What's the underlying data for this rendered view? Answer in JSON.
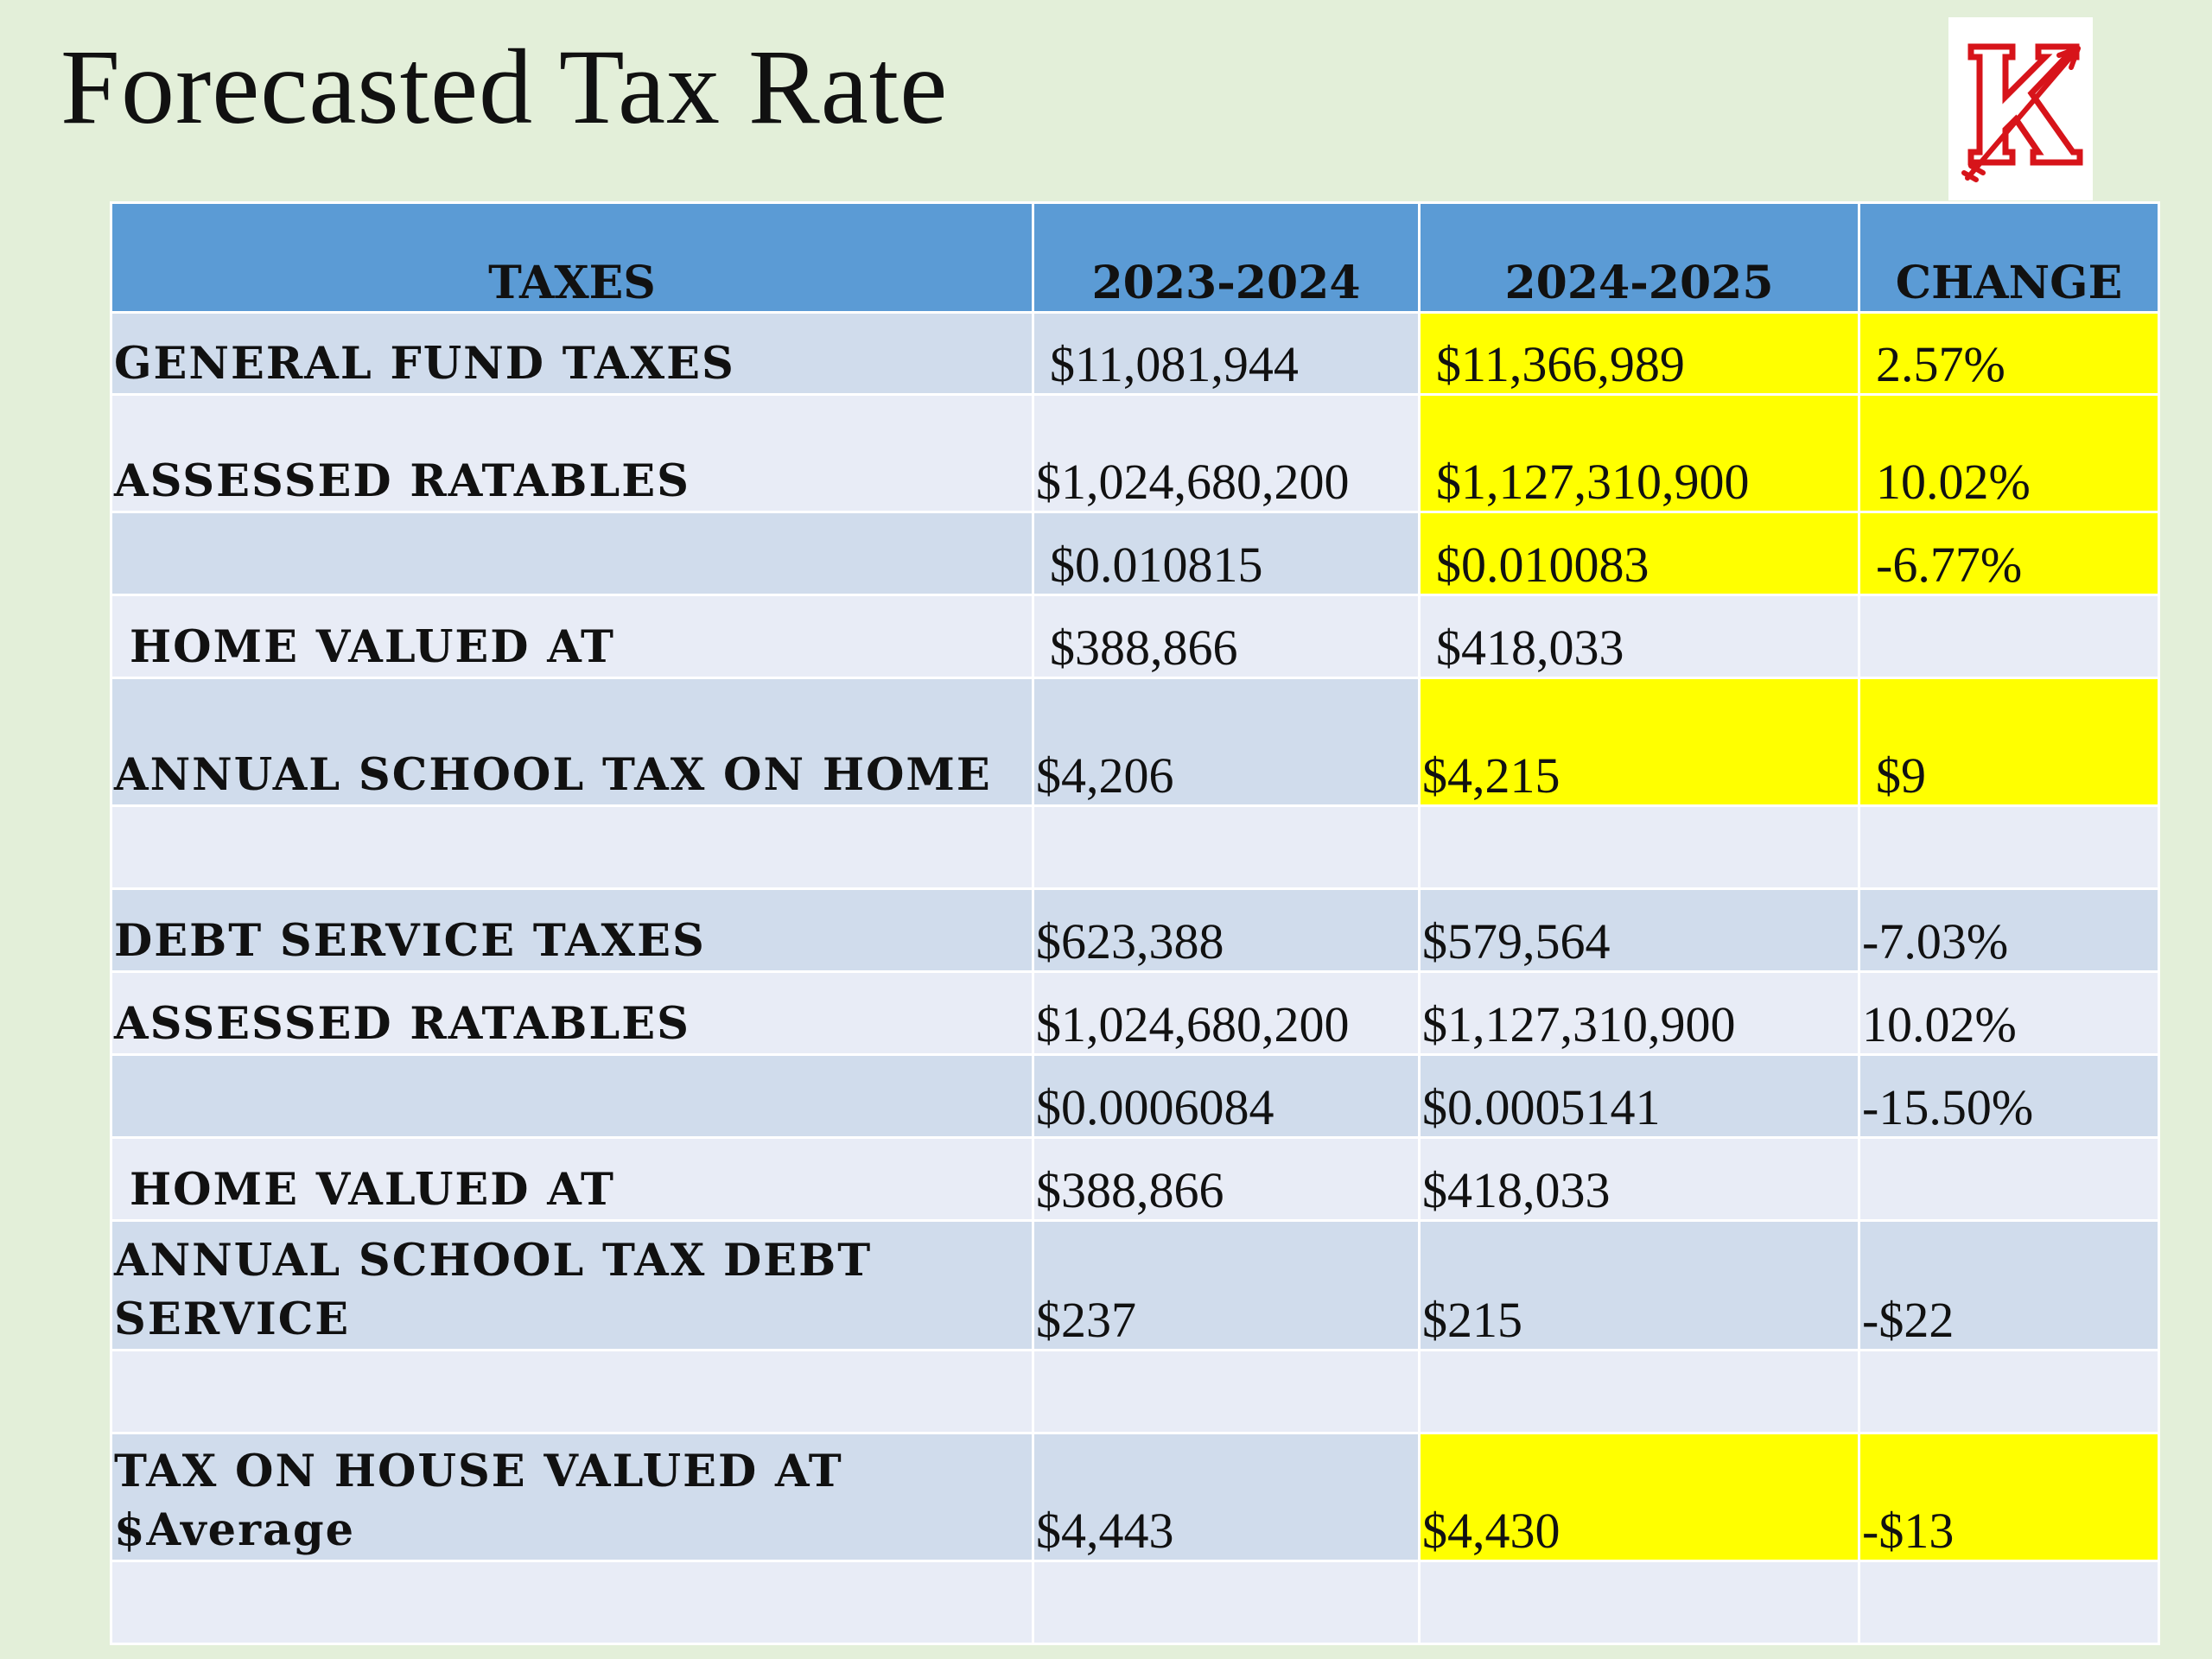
{
  "title": "Forecasted Tax Rate",
  "logo": {
    "letter": "K",
    "icon": "arrow-k-logo"
  },
  "colors": {
    "header": "#5b9bd5",
    "highlight": "#ffff00",
    "row_dark": "#d0dcec",
    "row_light": "#e8ecf6",
    "logo_red": "#d7141a"
  },
  "table": {
    "headers": [
      "TAXES",
      "2023-2024",
      "2024-2025",
      "CHANGE"
    ],
    "rows": [
      {
        "label": "GENERAL FUND  TAXES",
        "y1": "$11,081,944",
        "y2": "$11,366,989",
        "change": "2.57%"
      },
      {
        "label": "ASSESSED RATABLES",
        "y1": "$1,024,680,200",
        "y2": "$1,127,310,900",
        "change": "10.02%"
      },
      {
        "label": "",
        "y1": "$0.010815",
        "y2": "$0.010083",
        "change": "-6.77%"
      },
      {
        "label": "HOME VALUED AT",
        "y1": "$388,866",
        "y2": "$418,033",
        "change": ""
      },
      {
        "label": "ANNUAL SCHOOL TAX ON HOME",
        "y1": "$4,206",
        "y2": "$4,215",
        "change": "$9"
      },
      {
        "label": "",
        "y1": "",
        "y2": "",
        "change": ""
      },
      {
        "label": "DEBT SERVICE  TAXES",
        "y1": "$623,388",
        "y2": "$579,564",
        "change": "-7.03%"
      },
      {
        "label": "ASSESSED RATABLES",
        "y1": "$1,024,680,200",
        "y2": "$1,127,310,900",
        "change": "10.02%"
      },
      {
        "label": "",
        "y1": "$0.0006084",
        "y2": "$0.0005141",
        "change": "-15.50%"
      },
      {
        "label": "HOME  VALUED AT",
        "y1": "$388,866",
        "y2": "$418,033",
        "change": ""
      },
      {
        "label": "ANNUAL SCHOOL TAX DEBT SERVICE",
        "y1": "$237",
        "y2": "$215",
        "change": "-$22"
      },
      {
        "label": "",
        "y1": "",
        "y2": "",
        "change": ""
      },
      {
        "label": "TAX ON  HOUSE VALUED AT $Average",
        "y1": "$4,443",
        "y2": "$4,430",
        "change": "-$13"
      },
      {
        "label": "",
        "y1": "",
        "y2": "",
        "change": ""
      }
    ]
  }
}
